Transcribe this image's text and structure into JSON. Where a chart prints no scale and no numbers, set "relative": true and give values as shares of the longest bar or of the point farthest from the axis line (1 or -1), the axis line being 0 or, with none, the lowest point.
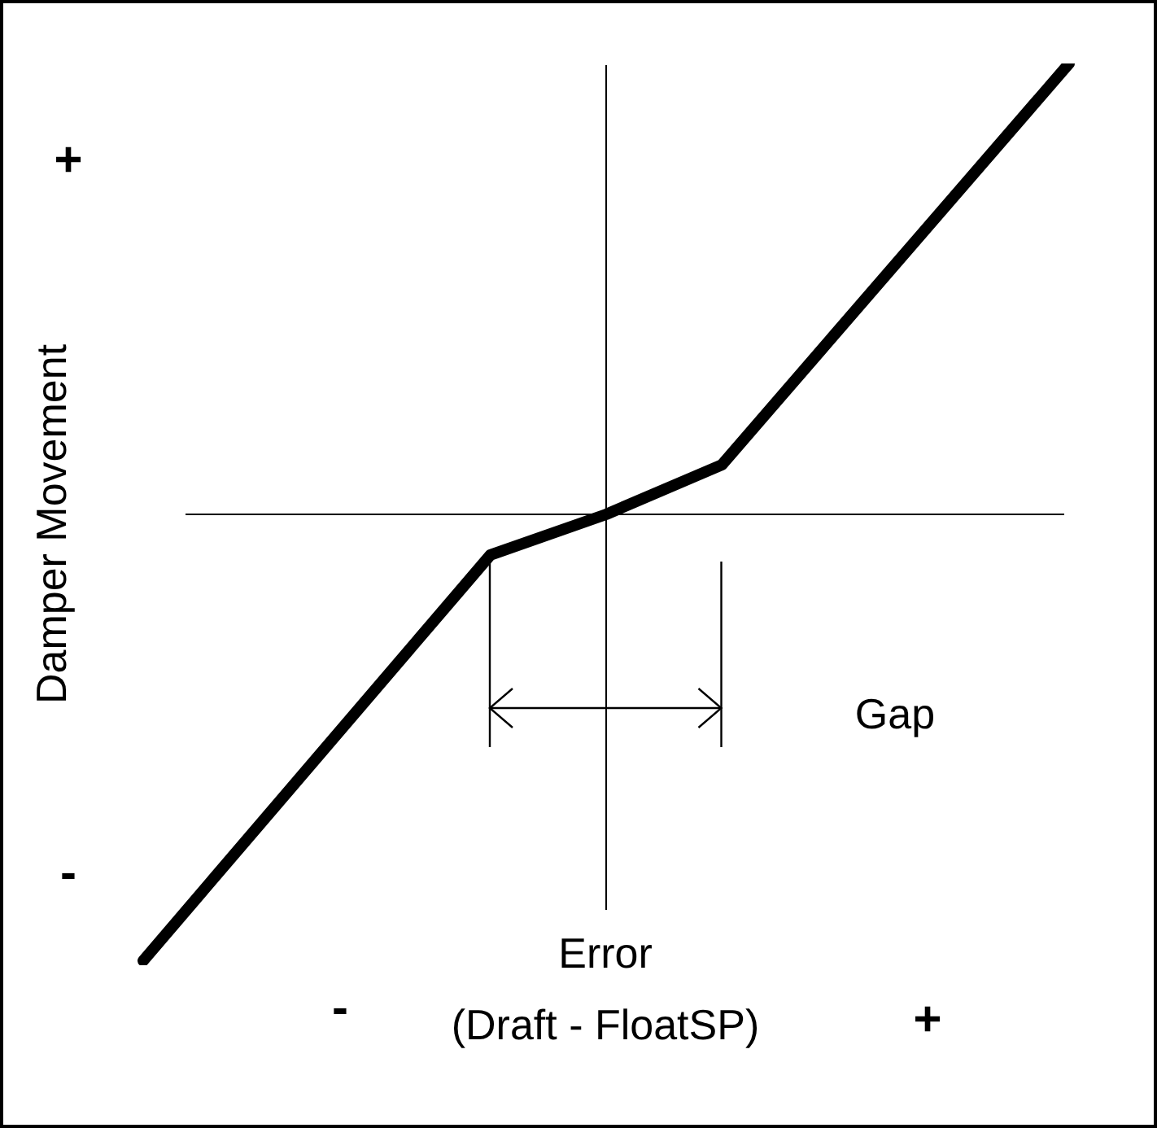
{
  "chart_data": {
    "type": "line",
    "xlabel": "Error",
    "ylabel": "Damper Movement",
    "categories": [
      null,
      null,
      null,
      null,
      null,
      null,
      null,
      null,
      null
    ],
    "values": [
      -0.99,
      null,
      null,
      -0.09,
      0,
      0.11,
      null,
      null,
      1
    ],
    "color": "#000000",
    "relative": true,
    "annotations": [
      "+",
      "-",
      "Gap",
      "(Draft - FloatSP)",
      "-",
      "+"
    ]
  }
}
